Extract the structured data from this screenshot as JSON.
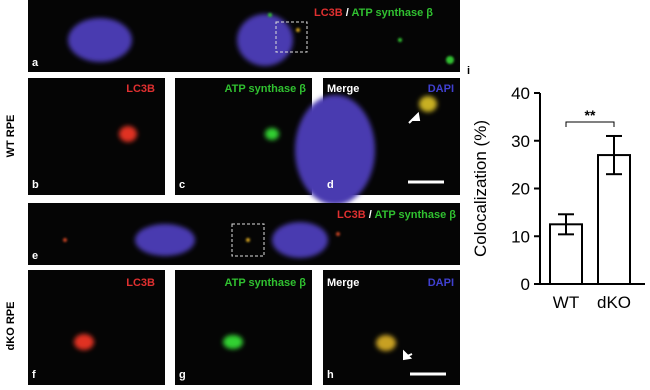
{
  "panels": {
    "a": {
      "letter": "a",
      "stain1": "LC3B",
      "sep": "/",
      "stain2": "ATP synthase β"
    },
    "b": {
      "letter": "b",
      "stain": "LC3B"
    },
    "c": {
      "letter": "c",
      "stain": "ATP synthase β"
    },
    "d": {
      "letter": "d",
      "merge": "Merge",
      "dapi": "DAPI"
    },
    "e": {
      "letter": "e",
      "stain1": "LC3B",
      "sep": "/",
      "stain2": "ATP synthase β"
    },
    "f": {
      "letter": "f",
      "stain": "LC3B"
    },
    "g": {
      "letter": "g",
      "stain": "ATP synthase β"
    },
    "h": {
      "letter": "h",
      "merge": "Merge",
      "dapi": "DAPI"
    }
  },
  "row_labels": [
    "WT RPE",
    "dKO RPE"
  ],
  "chart_data": {
    "type": "bar",
    "panel_label": "i",
    "ylabel": "Colocalization (%)",
    "categories": [
      "WT",
      "dKO"
    ],
    "values": [
      12.5,
      27
    ],
    "errors": [
      2.1,
      4
    ],
    "color": "#ffffff",
    "annotation": "**",
    "ylim": [
      0,
      40
    ],
    "yticks": [
      0,
      10,
      20,
      30,
      40
    ]
  }
}
